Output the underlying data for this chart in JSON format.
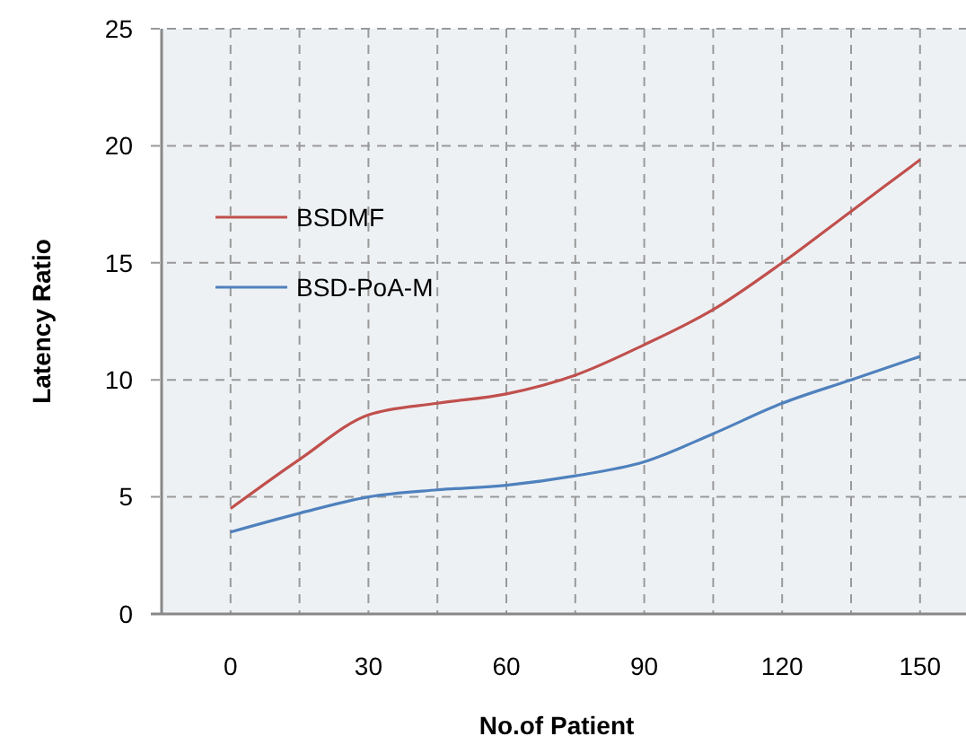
{
  "chart_data": {
    "type": "line",
    "xlabel": "No.of Patient",
    "ylabel": "Latency Ratio",
    "x": [
      0,
      15,
      30,
      45,
      60,
      75,
      90,
      105,
      120,
      135,
      150
    ],
    "series": [
      {
        "name": "BSDMF",
        "color": "#c0504d",
        "values": [
          4.5,
          6.6,
          8.5,
          9.0,
          9.4,
          10.2,
          11.5,
          13.0,
          15.0,
          17.2,
          19.4
        ]
      },
      {
        "name": "BSD-PoA-M",
        "color": "#4f81bd",
        "values": [
          3.5,
          4.3,
          5.0,
          5.3,
          5.5,
          5.9,
          6.5,
          7.7,
          9.0,
          10.0,
          11.0
        ]
      }
    ],
    "xlim": [
      -15,
      160
    ],
    "xticks": [
      {
        "value": -15,
        "label": null
      },
      0,
      {
        "value": 15,
        "label": null
      },
      30,
      {
        "value": 45,
        "label": null
      },
      60,
      {
        "value": 75,
        "label": null
      },
      90,
      {
        "value": 105,
        "label": null
      },
      120,
      {
        "value": 135,
        "label": null
      },
      150
    ],
    "ylim": [
      0,
      25
    ],
    "yticks": [
      0,
      5,
      10,
      15,
      20,
      25
    ],
    "grid": true,
    "legend": "top left",
    "marker": "none",
    "line_style": "solid"
  }
}
